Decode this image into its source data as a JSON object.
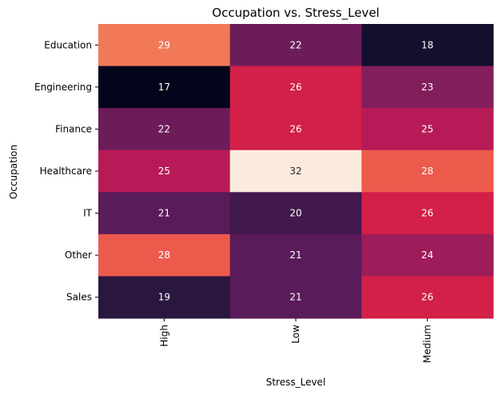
{
  "chart_data": {
    "type": "heatmap",
    "title": "Occupation vs. Stress_Level",
    "xlabel": "Stress_Level",
    "ylabel": "Occupation",
    "x_categories": [
      "High",
      "Low",
      "Medium"
    ],
    "y_categories": [
      "Education",
      "Engineering",
      "Finance",
      "Healthcare",
      "IT",
      "Other",
      "Sales"
    ],
    "values": [
      [
        29,
        22,
        18
      ],
      [
        17,
        26,
        23
      ],
      [
        22,
        26,
        25
      ],
      [
        25,
        32,
        28
      ],
      [
        21,
        20,
        26
      ],
      [
        28,
        21,
        24
      ],
      [
        19,
        21,
        26
      ]
    ],
    "value_range": [
      17,
      32
    ],
    "colormap": "rocket",
    "annotated": true,
    "colorbar": false,
    "grid": false
  }
}
